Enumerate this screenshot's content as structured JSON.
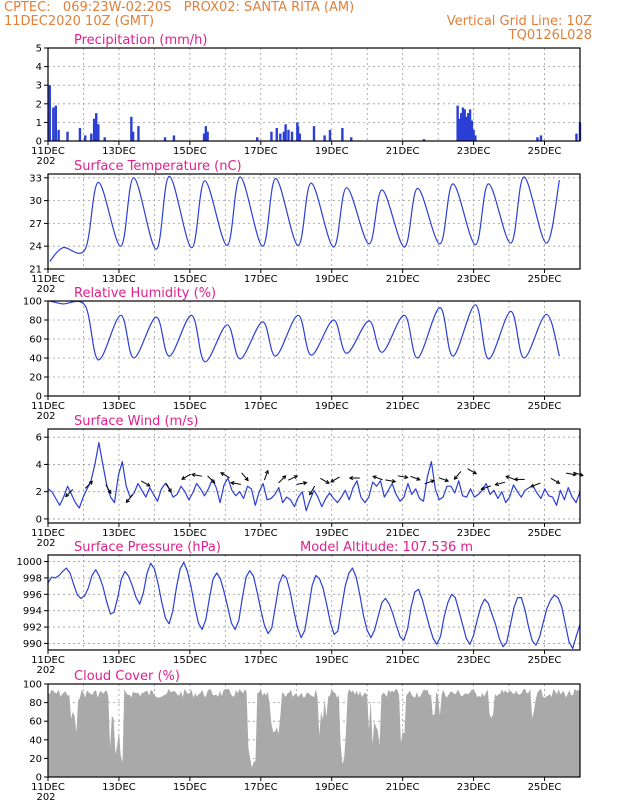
{
  "header": {
    "left1": "CPTEC:   069:23W-02:20S   PROX02: SANTA RITA (AM)",
    "left2": "11DEC2020 10Z (GMT)",
    "right1": "Vertical Grid Line: 10Z",
    "right2": "TQ0126L028"
  },
  "year_fragment": "202",
  "x_ticks": [
    "11DEC",
    "13DEC",
    "15DEC",
    "17DEC",
    "19DEC",
    "21DEC",
    "23DEC",
    "25DEC"
  ],
  "colors": {
    "header": "#e0803a",
    "title": "#e0208c",
    "line": "#2b3fd6",
    "cloud": "#a9a9a9",
    "grid": "#9a9a9a"
  },
  "chart_data": [
    {
      "type": "bar",
      "title": "Precipitation (mm/h)",
      "ylim": [
        0,
        5
      ],
      "yticks": [
        "0",
        "1",
        "2",
        "3",
        "4",
        "5"
      ],
      "events": [
        {
          "day": 0.05,
          "value": 3.0
        },
        {
          "day": 0.15,
          "value": 1.8
        },
        {
          "day": 0.22,
          "value": 1.9
        },
        {
          "day": 0.3,
          "value": 0.6
        },
        {
          "day": 0.55,
          "value": 0.5
        },
        {
          "day": 0.9,
          "value": 0.7
        },
        {
          "day": 1.05,
          "value": 0.3
        },
        {
          "day": 1.22,
          "value": 0.4
        },
        {
          "day": 1.3,
          "value": 1.2
        },
        {
          "day": 1.36,
          "value": 1.5
        },
        {
          "day": 1.42,
          "value": 0.9
        },
        {
          "day": 1.6,
          "value": 0.2
        },
        {
          "day": 2.35,
          "value": 1.3
        },
        {
          "day": 2.4,
          "value": 0.5
        },
        {
          "day": 2.55,
          "value": 0.8
        },
        {
          "day": 3.3,
          "value": 0.2
        },
        {
          "day": 3.55,
          "value": 0.3
        },
        {
          "day": 4.4,
          "value": 0.4
        },
        {
          "day": 4.45,
          "value": 0.8
        },
        {
          "day": 4.5,
          "value": 0.5
        },
        {
          "day": 5.9,
          "value": 0.2
        },
        {
          "day": 6.3,
          "value": 0.5
        },
        {
          "day": 6.45,
          "value": 0.7
        },
        {
          "day": 6.55,
          "value": 0.4
        },
        {
          "day": 6.65,
          "value": 0.5
        },
        {
          "day": 6.7,
          "value": 0.9
        },
        {
          "day": 6.78,
          "value": 0.6
        },
        {
          "day": 6.88,
          "value": 0.5
        },
        {
          "day": 7.03,
          "value": 1.0
        },
        {
          "day": 7.05,
          "value": 0.8
        },
        {
          "day": 7.1,
          "value": 0.4
        },
        {
          "day": 7.5,
          "value": 0.8
        },
        {
          "day": 7.8,
          "value": 0.3
        },
        {
          "day": 7.95,
          "value": 0.6
        },
        {
          "day": 8.3,
          "value": 0.7
        },
        {
          "day": 8.55,
          "value": 0.2
        },
        {
          "day": 10.6,
          "value": 0.1
        },
        {
          "day": 11.55,
          "value": 1.9
        },
        {
          "day": 11.6,
          "value": 1.2
        },
        {
          "day": 11.65,
          "value": 1.5
        },
        {
          "day": 11.7,
          "value": 1.8
        },
        {
          "day": 11.75,
          "value": 1.7
        },
        {
          "day": 11.8,
          "value": 1.3
        },
        {
          "day": 11.85,
          "value": 1.5
        },
        {
          "day": 11.9,
          "value": 1.7
        },
        {
          "day": 11.95,
          "value": 1.1
        },
        {
          "day": 12.0,
          "value": 0.6
        },
        {
          "day": 12.05,
          "value": 0.3
        },
        {
          "day": 13.8,
          "value": 0.2
        },
        {
          "day": 13.9,
          "value": 0.3
        },
        {
          "day": 14.9,
          "value": 0.4
        },
        {
          "day": 15.0,
          "value": 1.0
        }
      ]
    },
    {
      "type": "line",
      "title": "Surface Temperature (nC)",
      "ylim": [
        21,
        33.5
      ],
      "yticks": [
        "21",
        "24",
        "27",
        "30",
        "33"
      ],
      "tmax": [
        23.8,
        32.4,
        33.0,
        33.2,
        32.6,
        33.1,
        32.9,
        32.3,
        31.7,
        31.4,
        31.6,
        32.2,
        32.2,
        33.1,
        32.7
      ],
      "tmin": [
        22.0,
        23.6,
        24.0,
        23.6,
        23.8,
        24.1,
        24.0,
        24.1,
        23.9,
        24.3,
        23.9,
        24.3,
        24.2,
        24.4,
        24.4
      ]
    },
    {
      "type": "line",
      "title": "Relative Humidity (%)",
      "ylim": [
        0,
        100
      ],
      "yticks": [
        "0",
        "20",
        "40",
        "60",
        "80",
        "100"
      ],
      "rhmax": [
        100,
        95,
        85,
        83,
        85,
        75,
        78,
        85,
        80,
        79,
        85,
        93,
        96,
        89,
        86
      ],
      "rhmin": [
        97,
        38,
        40,
        42,
        36,
        39,
        42,
        43,
        45,
        46,
        40,
        42,
        39,
        40,
        42
      ]
    },
    {
      "type": "line",
      "title": "Surface Wind (m/s)",
      "ylim": [
        -0.3,
        6.6
      ],
      "yticks": [
        "0",
        "2",
        "4",
        "6"
      ],
      "speed": [
        2.2,
        2.0,
        1.5,
        1.0,
        1.6,
        2.4,
        1.8,
        1.2,
        0.8,
        1.6,
        2.2,
        2.8,
        4.0,
        5.6,
        4.0,
        2.5,
        1.6,
        1.2,
        3.2,
        4.2,
        2.4,
        1.6,
        1.9,
        2.6,
        2.1,
        1.6,
        2.3,
        1.8,
        1.3,
        2.2,
        2.6,
        2.2,
        1.6,
        1.8,
        2.4,
        2.0,
        1.4,
        1.9,
        2.6,
        2.2,
        1.7,
        2.2,
        2.9,
        2.3,
        1.2,
        2.5,
        3.0,
        2.1,
        1.7,
        2.0,
        1.5,
        2.4,
        2.2,
        1.0,
        2.0,
        2.6,
        1.4,
        1.5,
        1.8,
        2.3,
        1.2,
        1.6,
        1.4,
        0.9,
        1.6,
        2.0,
        0.6,
        1.4,
        2.1,
        1.6,
        0.9,
        1.5,
        1.9,
        1.5,
        1.2,
        1.6,
        2.1,
        1.4,
        2.3,
        2.8,
        1.6,
        1.2,
        1.6,
        2.7,
        2.4,
        2.8,
        1.6,
        2.1,
        2.6,
        1.8,
        1.3,
        1.6,
        2.6,
        1.8,
        2.2,
        1.5,
        1.3,
        3.1,
        4.2,
        2.2,
        1.4,
        1.6,
        2.4,
        2.4,
        1.9,
        2.8,
        1.7,
        1.6,
        2.2,
        1.6,
        1.8,
        2.1,
        2.6,
        1.8,
        2.1,
        1.5,
        2.0,
        1.2,
        1.6,
        2.5,
        2.0,
        1.6,
        2.1,
        2.3,
        2.4,
        1.9,
        1.5,
        2.2,
        1.7,
        1.6,
        1.0,
        2.1,
        1.4,
        2.3,
        1.6,
        1.2,
        2.0
      ],
      "vectors": [
        {
          "day": 0.6,
          "speed": 1.9,
          "angle": 225
        },
        {
          "day": 1.15,
          "speed": 2.5,
          "angle": 45
        },
        {
          "day": 1.7,
          "speed": 2.2,
          "angle": 300
        },
        {
          "day": 2.3,
          "speed": 1.5,
          "angle": 230
        },
        {
          "day": 2.75,
          "speed": 2.6,
          "angle": 330
        },
        {
          "day": 3.4,
          "speed": 2.3,
          "angle": 300
        },
        {
          "day": 3.9,
          "speed": 3.1,
          "angle": 210
        },
        {
          "day": 4.2,
          "speed": 3.2,
          "angle": 170
        },
        {
          "day": 4.6,
          "speed": 2.9,
          "angle": 315
        },
        {
          "day": 5.0,
          "speed": 3.2,
          "angle": 150
        },
        {
          "day": 5.3,
          "speed": 2.6,
          "angle": 170
        },
        {
          "day": 5.55,
          "speed": 3.1,
          "angle": 310
        },
        {
          "day": 6.15,
          "speed": 3.2,
          "angle": 70
        },
        {
          "day": 6.6,
          "speed": 2.9,
          "angle": 45
        },
        {
          "day": 6.9,
          "speed": 3.0,
          "angle": 25
        },
        {
          "day": 7.15,
          "speed": 2.6,
          "angle": 10
        },
        {
          "day": 7.45,
          "speed": 2.1,
          "angle": 240
        },
        {
          "day": 7.8,
          "speed": 2.8,
          "angle": 330
        },
        {
          "day": 8.1,
          "speed": 2.9,
          "angle": 210
        },
        {
          "day": 8.65,
          "speed": 3.0,
          "angle": 180
        },
        {
          "day": 9.3,
          "speed": 3.0,
          "angle": 160
        },
        {
          "day": 9.65,
          "speed": 2.8,
          "angle": 350
        },
        {
          "day": 10.0,
          "speed": 3.1,
          "angle": 350
        },
        {
          "day": 10.35,
          "speed": 3.0,
          "angle": 340
        },
        {
          "day": 10.75,
          "speed": 2.7,
          "angle": 20
        },
        {
          "day": 11.15,
          "speed": 2.9,
          "angle": 340
        },
        {
          "day": 11.55,
          "speed": 3.2,
          "angle": 230
        },
        {
          "day": 11.95,
          "speed": 3.5,
          "angle": 330
        },
        {
          "day": 12.35,
          "speed": 2.3,
          "angle": 200
        },
        {
          "day": 12.75,
          "speed": 2.6,
          "angle": 195
        },
        {
          "day": 13.05,
          "speed": 3.0,
          "angle": 160
        },
        {
          "day": 13.3,
          "speed": 2.9,
          "angle": 180
        },
        {
          "day": 13.75,
          "speed": 2.5,
          "angle": 200
        },
        {
          "day": 14.3,
          "speed": 2.8,
          "angle": 330
        },
        {
          "day": 14.75,
          "speed": 3.3,
          "angle": 350
        },
        {
          "day": 14.95,
          "speed": 3.3,
          "angle": 340
        }
      ]
    },
    {
      "type": "line",
      "title": "Surface Pressure (hPa)",
      "subtitle": "Model Altitude: 107.536  m",
      "ylim": [
        989.2,
        1000.8
      ],
      "yticks": [
        "990",
        "992",
        "994",
        "996",
        "998",
        "1000"
      ],
      "pressure": [
        997.4,
        998.1,
        998.0,
        998.3,
        998.8,
        999.2,
        998.6,
        997.2,
        995.9,
        995.5,
        995.8,
        996.8,
        998.3,
        999.0,
        998.2,
        996.9,
        995.1,
        993.6,
        993.8,
        995.6,
        997.9,
        998.8,
        998.2,
        997.0,
        995.6,
        994.8,
        996.2,
        998.6,
        999.8,
        999.1,
        997.3,
        995.1,
        993.1,
        992.4,
        993.9,
        996.8,
        999.1,
        999.9,
        998.8,
        996.9,
        994.5,
        992.5,
        991.7,
        992.9,
        995.5,
        997.9,
        998.6,
        997.9,
        996.3,
        994.4,
        992.5,
        991.7,
        992.8,
        995.7,
        998.1,
        998.9,
        998.2,
        996.3,
        994.1,
        992.2,
        991.2,
        991.9,
        994.6,
        997.3,
        998.4,
        998.0,
        996.3,
        994.0,
        991.9,
        990.7,
        991.6,
        994.3,
        997.1,
        998.3,
        997.9,
        996.7,
        994.7,
        992.5,
        991.1,
        991.5,
        994.3,
        997.0,
        998.6,
        999.2,
        998.1,
        995.9,
        993.4,
        991.6,
        990.7,
        991.6,
        993.3,
        995.0,
        995.5,
        994.8,
        993.6,
        992.1,
        990.8,
        990.4,
        991.8,
        994.5,
        996.3,
        996.6,
        995.4,
        993.7,
        992.0,
        990.6,
        989.9,
        990.9,
        993.3,
        995.0,
        996.0,
        995.6,
        994.0,
        992.3,
        990.6,
        989.9,
        991.0,
        992.9,
        994.5,
        995.4,
        994.9,
        993.6,
        992.3,
        990.6,
        989.6,
        990.1,
        992.2,
        994.4,
        995.6,
        995.6,
        994.1,
        992.0,
        990.3,
        989.8,
        990.8,
        992.6,
        994.3,
        995.3,
        995.9,
        995.6,
        994.5,
        992.4,
        990.2,
        989.4,
        990.9,
        992.3
      ]
    },
    {
      "type": "area",
      "title": "Cloud Cover (%)",
      "ylim": [
        0,
        100
      ],
      "yticks": [
        "0",
        "20",
        "40",
        "60",
        "80",
        "100"
      ]
    }
  ]
}
